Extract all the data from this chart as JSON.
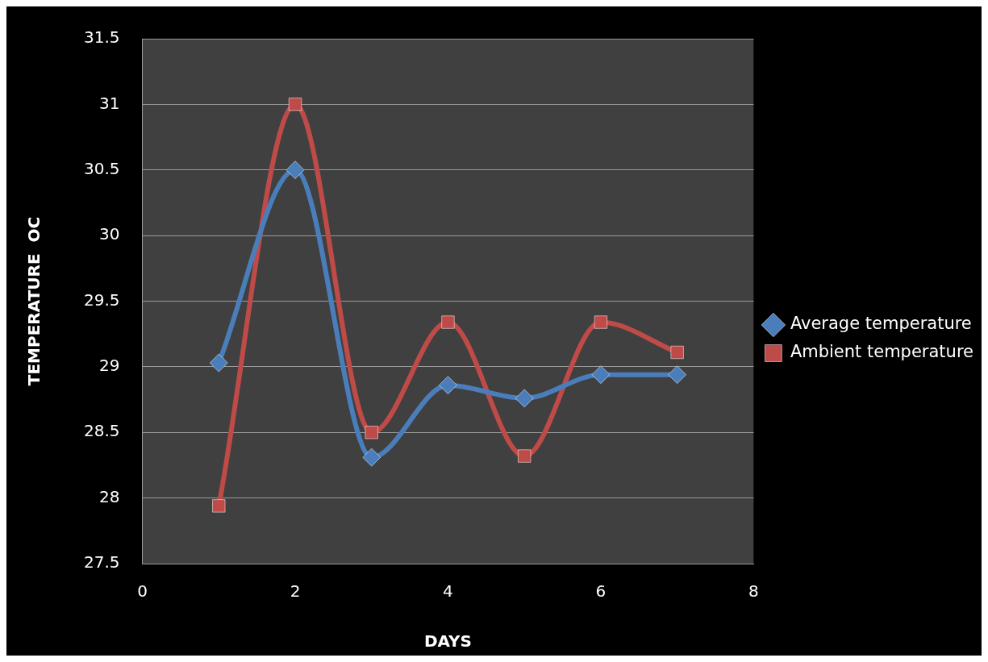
{
  "chart_data": {
    "type": "line",
    "xlabel": "DAYS",
    "ylabel": "TEMPERATURE  OC",
    "x": [
      1,
      2,
      3,
      4,
      5,
      6,
      7
    ],
    "series": [
      {
        "name": "Average temperature",
        "color": "#4a7ebb",
        "marker": "diamond",
        "values": [
          29.03,
          30.5,
          28.31,
          28.86,
          28.76,
          28.94,
          28.94
        ]
      },
      {
        "name": "Ambient temperature",
        "color": "#be4b48",
        "marker": "square",
        "values": [
          27.94,
          31.0,
          28.5,
          29.34,
          28.32,
          29.34,
          29.11
        ]
      }
    ],
    "xlim": [
      0,
      8
    ],
    "xticks": [
      0,
      2,
      4,
      6,
      8
    ],
    "ylim": [
      27.5,
      31.5
    ],
    "yticks": [
      27.5,
      28,
      28.5,
      29,
      29.5,
      30,
      30.5,
      31,
      31.5
    ],
    "grid": "y",
    "legend": "right",
    "line_style": "solid"
  }
}
